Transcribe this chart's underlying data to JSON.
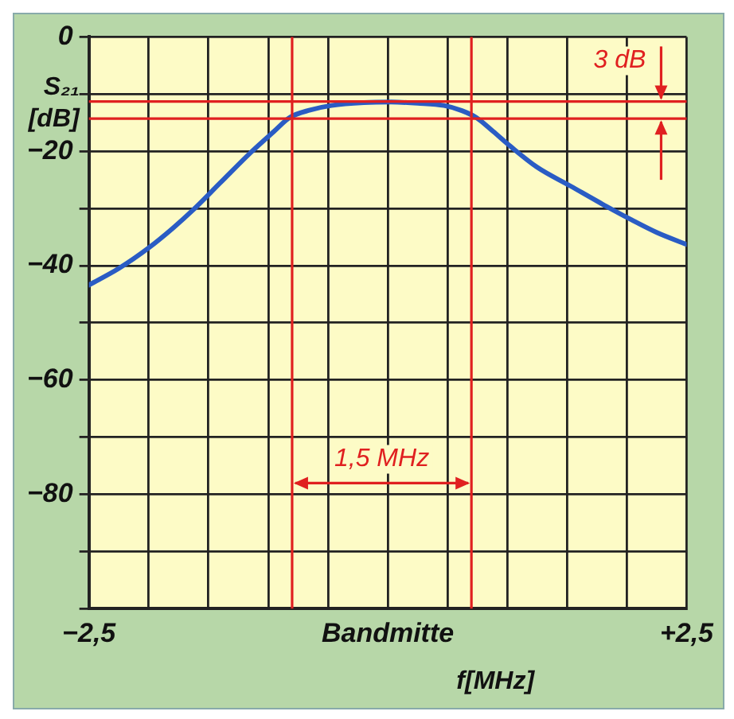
{
  "chart_data": {
    "type": "line",
    "xlabel": "f[MHz]",
    "ylabel": "S₂₁ [dB]",
    "x": [
      -2.5,
      -2.25,
      -2.0,
      -1.8,
      -1.63,
      -1.4,
      -1.14,
      -0.95,
      -0.82,
      -0.65,
      -0.47,
      -0.2,
      0.03,
      0.25,
      0.47,
      0.62,
      0.74,
      0.88,
      1.03,
      1.25,
      1.53,
      1.8,
      2.04,
      2.25,
      2.5
    ],
    "series": [
      {
        "color": "#2a5cc4",
        "values": [
          -43.4,
          -40.5,
          -36.9,
          -33.5,
          -30.3,
          -25.5,
          -20.1,
          -16.5,
          -14.1,
          -12.8,
          -12.0,
          -11.5,
          -11.4,
          -11.6,
          -12.0,
          -12.9,
          -14.1,
          -16.5,
          -19.2,
          -22.8,
          -26.1,
          -29.3,
          -32.0,
          -34.2,
          -36.3
        ]
      }
    ],
    "xlim": [
      -2.5,
      2.5
    ],
    "xticks": [
      {
        "value": -2.5,
        "label": "−2,5"
      },
      {
        "value": -2,
        "label": null
      },
      {
        "value": -1.5,
        "label": null
      },
      {
        "value": -1,
        "label": null
      },
      {
        "value": -0.5,
        "label": null
      },
      {
        "value": 0,
        "label": "Bandmitte"
      },
      {
        "value": 0.5,
        "label": null
      },
      {
        "value": 1,
        "label": null
      },
      {
        "value": 1.5,
        "label": null
      },
      {
        "value": 2,
        "label": null
      },
      {
        "value": 2.5,
        "label": "+2,5"
      }
    ],
    "ylim": [
      -100,
      0
    ],
    "yticks": [
      {
        "value": 0,
        "label": "0"
      },
      {
        "value": -10,
        "label": null
      },
      {
        "value": -20,
        "label": "−20"
      },
      {
        "value": -30,
        "label": null
      },
      {
        "value": -40,
        "label": "−40"
      },
      {
        "value": -50,
        "label": null
      },
      {
        "value": -60,
        "label": "−60"
      },
      {
        "value": -70,
        "label": null
      },
      {
        "value": -80,
        "label": "−80"
      },
      {
        "value": -90,
        "label": null
      },
      {
        "value": -100,
        "label": null
      }
    ],
    "ref_lines": [
      {
        "axis": "x",
        "value": -0.8,
        "color": "#e02020"
      },
      {
        "axis": "x",
        "value": 0.7,
        "color": "#e02020"
      },
      {
        "axis": "y",
        "value": -11.3,
        "color": "#e02020"
      },
      {
        "axis": "y",
        "value": -14.3,
        "color": "#e02020"
      }
    ],
    "annotations": [
      "1,5 MHz",
      "3 dB"
    ],
    "grid": true,
    "legend": false,
    "marker": "none",
    "line_style": "solid"
  }
}
